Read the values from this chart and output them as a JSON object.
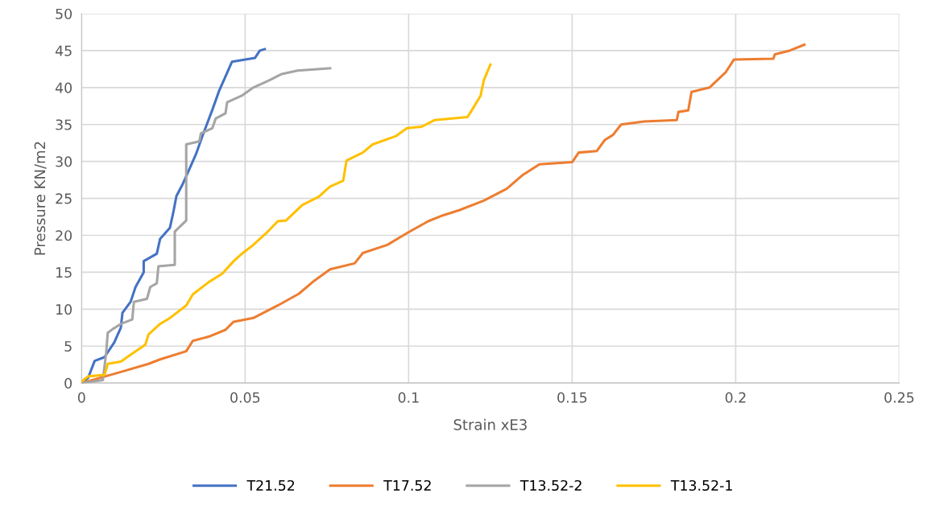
{
  "chart_data": {
    "type": "line",
    "xlabel": "Strain xE3",
    "ylabel": "Pressure KN/m2",
    "xlim": [
      0,
      0.25
    ],
    "xticks": [
      0,
      0.05,
      0.1,
      0.15,
      0.2,
      0.25
    ],
    "ylim": [
      0,
      50
    ],
    "yticks": [
      0,
      5,
      10,
      15,
      20,
      25,
      30,
      35,
      40,
      45,
      50
    ],
    "grid": true,
    "legend": "bottom",
    "marker": "none",
    "line_style": "solid",
    "series": [
      {
        "name": "T21.52",
        "color": "#4472c4",
        "x": [
          0,
          0.002,
          0.004,
          0.007,
          0.01,
          0.012,
          0.0125,
          0.015,
          0.0165,
          0.019,
          0.019,
          0.023,
          0.024,
          0.027,
          0.028,
          0.029,
          0.031,
          0.033,
          0.035,
          0.037,
          0.04,
          0.042,
          0.044,
          0.046,
          0.053,
          0.0545,
          0.056
        ],
        "values": [
          0,
          0.7,
          3,
          3.5,
          5.5,
          7.5,
          9.5,
          11,
          13,
          15,
          16.5,
          17.5,
          19.5,
          21,
          23,
          25.3,
          27,
          29,
          31,
          33.5,
          37,
          39.5,
          41.5,
          43.5,
          44,
          45,
          45.2
        ]
      },
      {
        "name": "T17.52",
        "color": "#ed7d31",
        "x": [
          0,
          0.012,
          0.0205,
          0.024,
          0.032,
          0.034,
          0.039,
          0.044,
          0.0465,
          0.0525,
          0.06,
          0.0665,
          0.071,
          0.076,
          0.0835,
          0.086,
          0.0935,
          0.0995,
          0.106,
          0.1105,
          0.1155,
          0.123,
          0.13,
          0.135,
          0.14,
          0.15,
          0.152,
          0.1575,
          0.16,
          0.1625,
          0.165,
          0.172,
          0.182,
          0.1825,
          0.1855,
          0.1865,
          0.192,
          0.197,
          0.1995,
          0.2115,
          0.212,
          0.2165,
          0.221
        ],
        "values": [
          0,
          1.5,
          2.6,
          3.2,
          4.3,
          5.7,
          6.3,
          7.2,
          8.3,
          8.8,
          10.5,
          12.1,
          13.8,
          15.4,
          16.2,
          17.6,
          18.7,
          20.3,
          21.9,
          22.7,
          23.4,
          24.7,
          26.3,
          28.2,
          29.6,
          29.9,
          31.2,
          31.4,
          32.9,
          33.6,
          35,
          35.4,
          35.6,
          36.7,
          36.9,
          39.4,
          40,
          42.1,
          43.8,
          43.9,
          44.5,
          45,
          45.8
        ]
      },
      {
        "name": "T13.52-2",
        "color": "#a5a5a5",
        "x": [
          0,
          0.0065,
          0.0075,
          0.008,
          0.0095,
          0.012,
          0.0155,
          0.016,
          0.02,
          0.021,
          0.023,
          0.0235,
          0.0285,
          0.0285,
          0.032,
          0.032,
          0.036,
          0.0365,
          0.04,
          0.041,
          0.044,
          0.0445,
          0.049,
          0.0525,
          0.0575,
          0.061,
          0.066,
          0.076
        ],
        "values": [
          0,
          0.4,
          4,
          6.8,
          7.3,
          8,
          8.6,
          11,
          11.4,
          13,
          13.5,
          15.8,
          16,
          20.5,
          22,
          32.3,
          32.7,
          33.8,
          34.5,
          35.8,
          36.5,
          38,
          38.9,
          40,
          41,
          41.8,
          42.3,
          42.6
        ]
      },
      {
        "name": "T13.52-1",
        "color": "#ffc000",
        "x": [
          0,
          0.002,
          0.007,
          0.008,
          0.012,
          0.0155,
          0.0195,
          0.0205,
          0.024,
          0.027,
          0.032,
          0.034,
          0.039,
          0.043,
          0.0465,
          0.049,
          0.0525,
          0.0565,
          0.06,
          0.0625,
          0.0675,
          0.0725,
          0.076,
          0.08,
          0.081,
          0.086,
          0.089,
          0.096,
          0.0995,
          0.104,
          0.108,
          0.118,
          0.119,
          0.122,
          0.123,
          0.125
        ],
        "values": [
          0.2,
          0.9,
          1.1,
          2.6,
          2.9,
          4,
          5.2,
          6.6,
          8,
          8.8,
          10.5,
          12,
          13.7,
          14.8,
          16.5,
          17.5,
          18.7,
          20.3,
          21.9,
          22,
          24.1,
          25.2,
          26.6,
          27.4,
          30.1,
          31.2,
          32.3,
          33.4,
          34.5,
          34.7,
          35.6,
          36,
          36.7,
          38.9,
          41,
          43.1
        ]
      }
    ]
  }
}
